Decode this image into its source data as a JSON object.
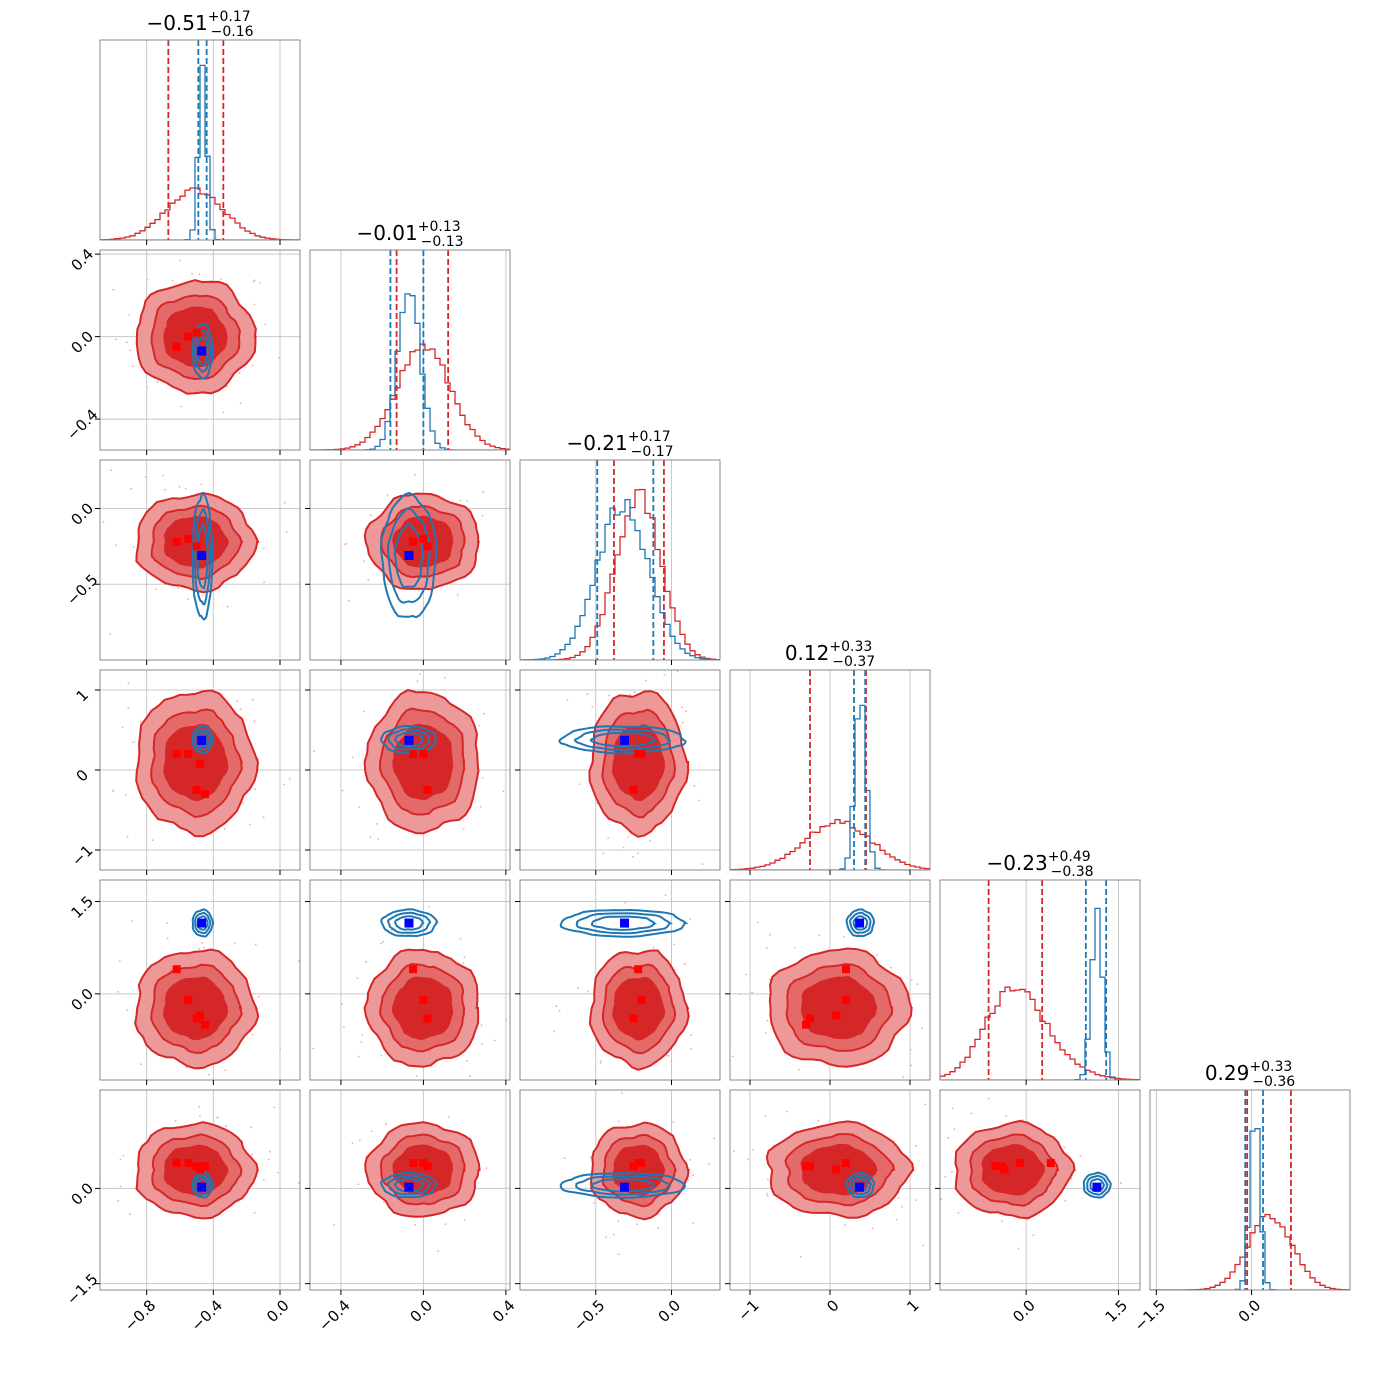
{
  "chart_data": {
    "type": "corner",
    "n_params": 6,
    "colors": {
      "red": "#d62728",
      "blue": "#1f77b4",
      "red_fill_outer": "#ee9999",
      "red_fill_inner": "#d62728",
      "marker_red": "#ff0000",
      "marker_blue": "#0000ff",
      "grid": "#c8c8c8"
    },
    "titles": [
      {
        "median": "−0.51",
        "plus": "+0.17",
        "minus": "−0.16"
      },
      {
        "median": "−0.01",
        "plus": "+0.13",
        "minus": "−0.13"
      },
      {
        "median": "−0.21",
        "plus": "+0.17",
        "minus": "−0.17"
      },
      {
        "median": "0.12",
        "plus": "+0.33",
        "minus": "−0.37"
      },
      {
        "median": "−0.23",
        "plus": "+0.49",
        "minus": "−0.38"
      },
      {
        "median": "0.29",
        "plus": "+0.33",
        "minus": "−0.36"
      }
    ],
    "params": [
      {
        "range": [
          -1.08,
          0.12
        ],
        "ticks": [
          -0.8,
          -0.4,
          0.0
        ],
        "tick_labels": [
          "−0.8",
          "−0.4",
          "0.0"
        ],
        "red": {
          "mean": -0.51,
          "sd": 0.17
        },
        "blue": {
          "mean": -0.465,
          "sd": 0.025
        },
        "red_quantiles": [
          -0.67,
          -0.34
        ],
        "blue_quantiles": [
          -0.49,
          -0.44
        ],
        "truth": -0.47,
        "red_points": [
          -0.62,
          -0.55,
          -0.5,
          -0.45,
          -0.48
        ]
      },
      {
        "range": [
          -0.55,
          0.42
        ],
        "ticks": [
          -0.4,
          0.0,
          0.4
        ],
        "tick_labels": [
          "−0.4",
          "0.0",
          "0.4"
        ],
        "red": {
          "mean": 0.0,
          "sd": 0.13
        },
        "blue": {
          "mean": -0.07,
          "sd": 0.055
        },
        "red_quantiles": [
          -0.13,
          0.12
        ],
        "blue_quantiles": [
          -0.16,
          0.0
        ],
        "truth": -0.07,
        "red_points": [
          -0.05,
          0.0,
          0.02
        ]
      },
      {
        "range": [
          -1.0,
          0.32
        ],
        "ticks": [
          -0.5,
          0.0
        ],
        "tick_labels": [
          "−0.5",
          "0.0"
        ],
        "red": {
          "mean": -0.22,
          "sd": 0.15
        },
        "blue": {
          "mean": -0.32,
          "sd": 0.17
        },
        "red_quantiles": [
          -0.38,
          -0.05
        ],
        "blue_quantiles": [
          -0.49,
          -0.12
        ],
        "truth": -0.31,
        "red_points": [
          -0.22,
          -0.2,
          -0.25
        ]
      },
      {
        "range": [
          -1.25,
          1.25
        ],
        "ticks": [
          -1,
          0,
          1
        ],
        "tick_labels": [
          "−1",
          "0",
          "1"
        ],
        "red": {
          "mean": 0.1,
          "sd": 0.42
        },
        "blue": {
          "mean": 0.38,
          "sd": 0.07
        },
        "red_quantiles": [
          -0.25,
          0.45
        ],
        "blue_quantiles": [
          0.3,
          0.44
        ],
        "truth": 0.37,
        "red_points": [
          0.2,
          0.2,
          -0.25,
          -0.3,
          0.08
        ]
      },
      {
        "range": [
          -1.4,
          1.85
        ],
        "ticks": [
          0.0,
          1.5
        ],
        "tick_labels": [
          "0.0",
          "1.5"
        ],
        "red": {
          "mean": -0.23,
          "sd": 0.45
        },
        "blue": {
          "mean": 1.15,
          "sd": 0.09
        },
        "red_quantiles": [
          -0.61,
          0.26
        ],
        "blue_quantiles": [
          0.97,
          1.3
        ],
        "truth": 1.15,
        "red_points": [
          0.4,
          -0.1,
          -0.4,
          -0.5,
          -0.35
        ]
      },
      {
        "range": [
          -1.6,
          1.55
        ],
        "ticks": [
          -1.5,
          0.0
        ],
        "tick_labels": [
          "−1.5",
          "0.0"
        ],
        "red": {
          "mean": 0.29,
          "sd": 0.35
        },
        "blue": {
          "mean": 0.05,
          "sd": 0.08
        },
        "red_quantiles": [
          -0.07,
          0.62
        ],
        "blue_quantiles": [
          -0.1,
          0.18
        ],
        "truth": 0.02,
        "red_points": [
          0.4,
          0.4,
          0.35,
          0.35,
          0.3
        ]
      }
    ],
    "ytick_overrides": {
      "1": {
        "ticks": [
          0.4,
          0.0,
          -0.4
        ],
        "labels": [
          "0.4",
          "0.0",
          "−0.4"
        ],
        "range": [
          -0.55,
          0.42
        ]
      },
      "2": {
        "ticks": [
          0.0,
          -0.5
        ],
        "labels": [
          "0.0",
          "−0.5"
        ],
        "range": [
          -1.0,
          0.32
        ]
      },
      "3": {
        "ticks": [
          1,
          0,
          -1
        ],
        "labels": [
          "1",
          "0",
          "−1"
        ],
        "range": [
          -1.25,
          1.25
        ]
      },
      "4": {
        "ticks": [
          1.5,
          0.0
        ],
        "labels": [
          "1.5",
          "0.0"
        ],
        "range": [
          -1.4,
          1.85
        ]
      },
      "5": {
        "ticks": [
          0.0,
          -1.5
        ],
        "labels": [
          "0.0",
          "−1.5"
        ],
        "range": [
          -1.6,
          1.55
        ]
      }
    },
    "grid": true
  }
}
